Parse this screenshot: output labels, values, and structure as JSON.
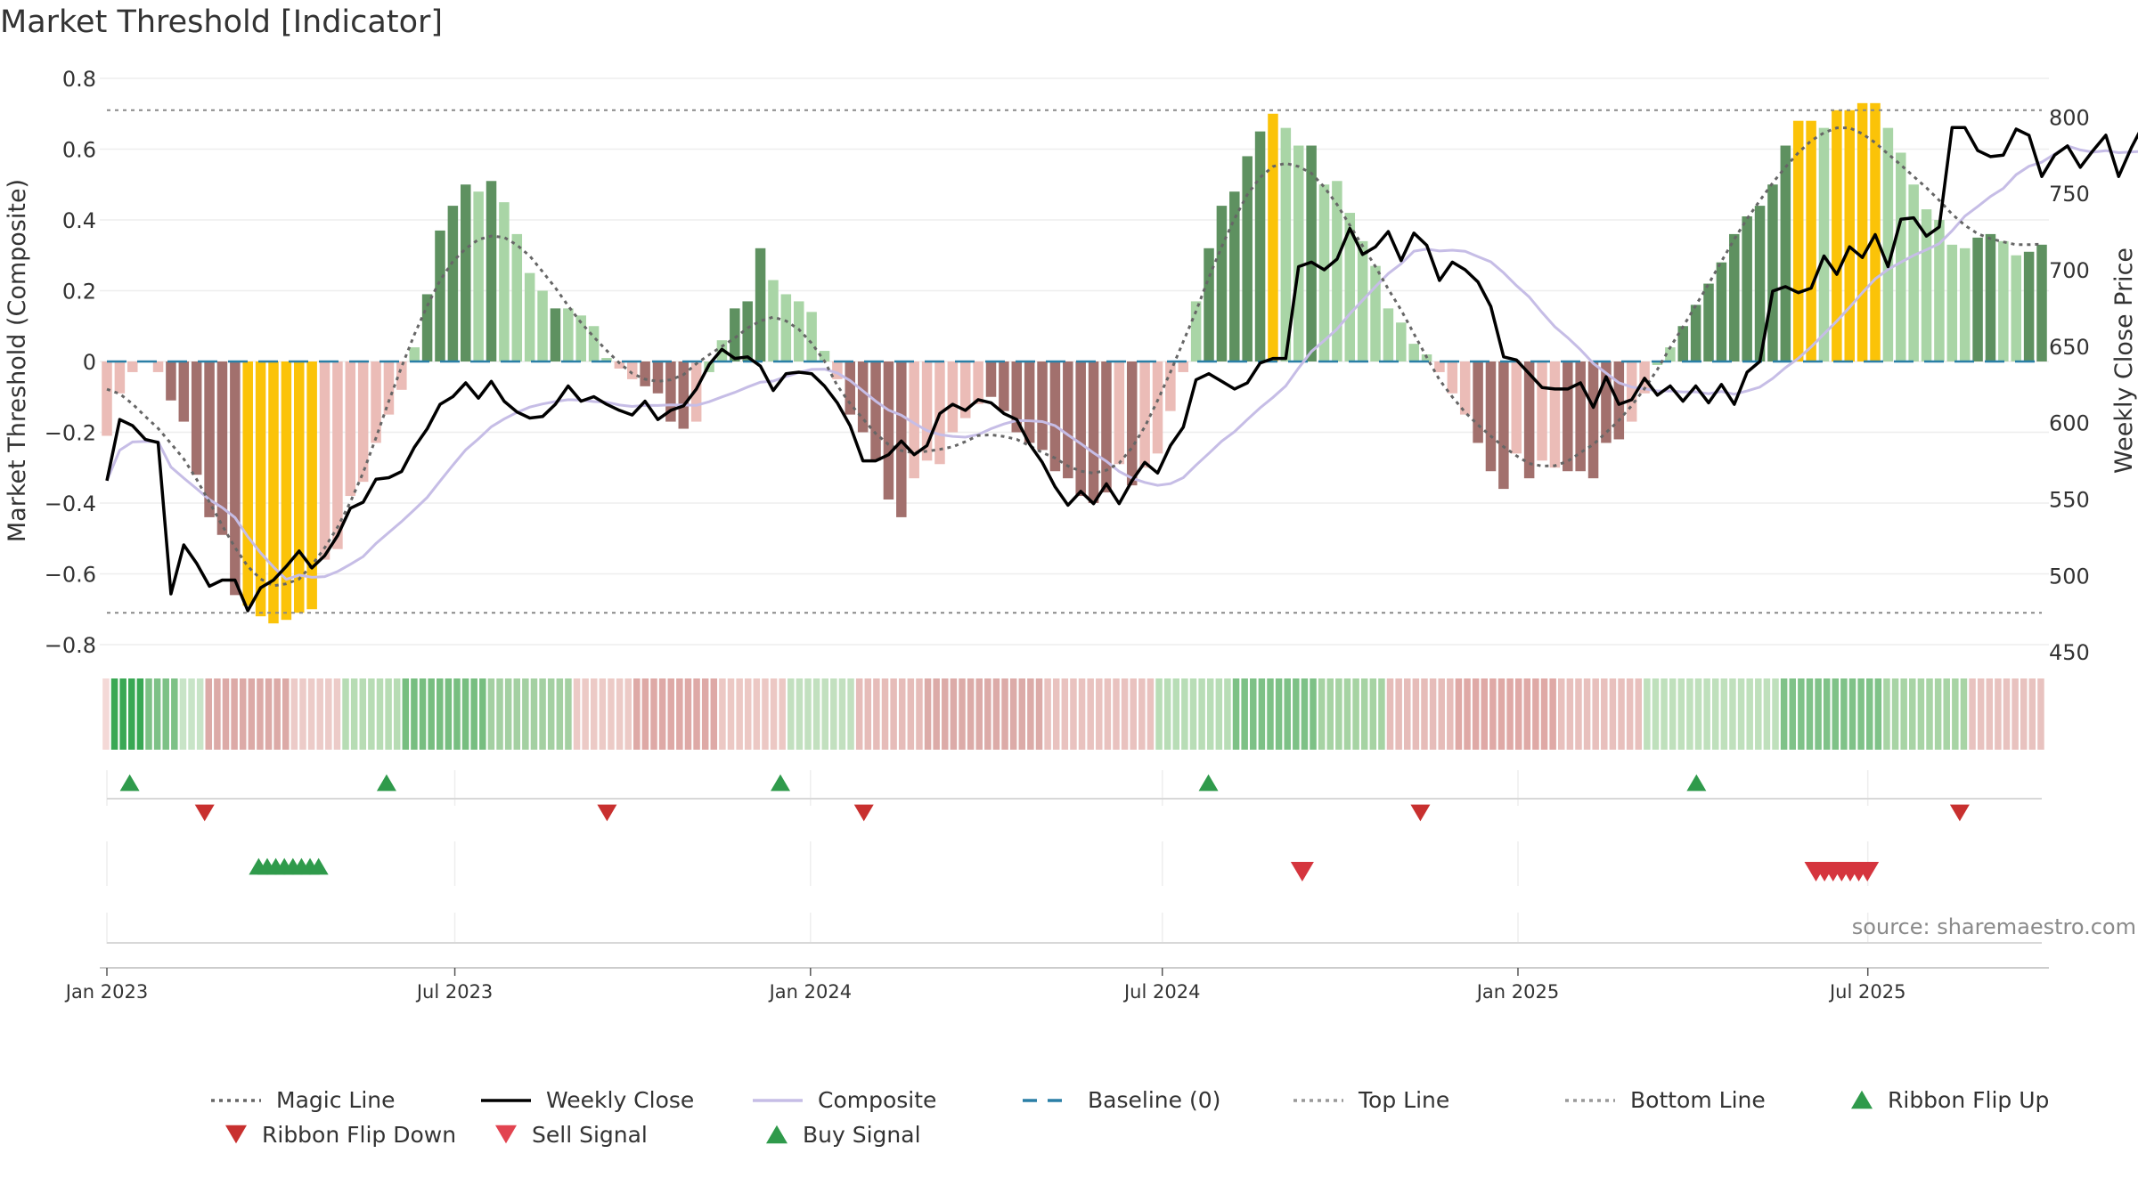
{
  "chart_data": {
    "type": "bar",
    "title": "Market Threshold [Indicator]",
    "ylabel": "Market Threshold (Composite)",
    "y2label": "Weekly Close Price",
    "ylim": [
      -0.8,
      0.8
    ],
    "y2lim": [
      450,
      800
    ],
    "yticks": [
      "0.8",
      "0.6",
      "0.4",
      "0.2",
      "0",
      "−0.2",
      "−0.4",
      "−0.6",
      "−0.8"
    ],
    "y2ticks": [
      "800",
      "750",
      "700",
      "650",
      "600",
      "550",
      "500",
      "450"
    ],
    "xticks": [
      "Jan 2023",
      "Jul 2023",
      "Jan 2024",
      "Jul 2024",
      "Jan 2025",
      "Jul 2025"
    ],
    "x_start": "2023-01-02",
    "x_end": "2025-09-29",
    "top_line": 0.71,
    "bottom_line": -0.71,
    "baseline": 0,
    "grid": true,
    "legend_position": "bottom",
    "source": "source: sharemaestro.com",
    "colors": {
      "pos_dark": "#5e9160",
      "pos_light": "#a9d5a6",
      "neg_dark": "#a2706d",
      "neg_light": "#ebbcb7",
      "extreme": "#fbc308",
      "weekly_close": "#000000",
      "composite": "#c6bde6",
      "magic": "#666666",
      "baseline": "#2a7fa6",
      "buy": "#2f9a4b",
      "sell": "#d5353e"
    },
    "histogram": [
      [
        -0.21,
        "nl"
      ],
      [
        -0.09,
        "nl"
      ],
      [
        -0.03,
        "nl"
      ],
      [
        0,
        "nl"
      ],
      [
        -0.03,
        "nl"
      ],
      [
        -0.11,
        "nd"
      ],
      [
        -0.17,
        "nd"
      ],
      [
        -0.32,
        "nd"
      ],
      [
        -0.44,
        "nd"
      ],
      [
        -0.49,
        "nd"
      ],
      [
        -0.66,
        "nd"
      ],
      [
        -0.69,
        "x"
      ],
      [
        -0.72,
        "x"
      ],
      [
        -0.74,
        "x"
      ],
      [
        -0.73,
        "x"
      ],
      [
        -0.71,
        "x"
      ],
      [
        -0.7,
        "x"
      ],
      [
        -0.56,
        "nl"
      ],
      [
        -0.53,
        "nl"
      ],
      [
        -0.38,
        "nl"
      ],
      [
        -0.34,
        "nl"
      ],
      [
        -0.23,
        "nl"
      ],
      [
        -0.15,
        "nl"
      ],
      [
        -0.08,
        "nl"
      ],
      [
        0.04,
        "pl"
      ],
      [
        0.19,
        "pd"
      ],
      [
        0.37,
        "pd"
      ],
      [
        0.44,
        "pd"
      ],
      [
        0.5,
        "pd"
      ],
      [
        0.48,
        "pl"
      ],
      [
        0.51,
        "pd"
      ],
      [
        0.45,
        "pl"
      ],
      [
        0.36,
        "pl"
      ],
      [
        0.25,
        "pl"
      ],
      [
        0.2,
        "pl"
      ],
      [
        0.15,
        "pd"
      ],
      [
        0.15,
        "pl"
      ],
      [
        0.13,
        "pl"
      ],
      [
        0.1,
        "pl"
      ],
      [
        0.01,
        "pl"
      ],
      [
        -0.02,
        "nl"
      ],
      [
        -0.05,
        "nl"
      ],
      [
        -0.07,
        "nd"
      ],
      [
        -0.09,
        "nd"
      ],
      [
        -0.17,
        "nd"
      ],
      [
        -0.19,
        "nd"
      ],
      [
        -0.17,
        "nl"
      ],
      [
        -0.03,
        "pl"
      ],
      [
        0.06,
        "pl"
      ],
      [
        0.15,
        "pd"
      ],
      [
        0.17,
        "pd"
      ],
      [
        0.32,
        "pd"
      ],
      [
        0.23,
        "pl"
      ],
      [
        0.19,
        "pl"
      ],
      [
        0.17,
        "pl"
      ],
      [
        0.14,
        "pl"
      ],
      [
        0.03,
        "pl"
      ],
      [
        -0.05,
        "nl"
      ],
      [
        -0.15,
        "nd"
      ],
      [
        -0.2,
        "nd"
      ],
      [
        -0.28,
        "nd"
      ],
      [
        -0.39,
        "nd"
      ],
      [
        -0.44,
        "nd"
      ],
      [
        -0.33,
        "nl"
      ],
      [
        -0.28,
        "nl"
      ],
      [
        -0.29,
        "nl"
      ],
      [
        -0.2,
        "nl"
      ],
      [
        -0.16,
        "nl"
      ],
      [
        -0.12,
        "nl"
      ],
      [
        -0.1,
        "nd"
      ],
      [
        -0.14,
        "nd"
      ],
      [
        -0.2,
        "nd"
      ],
      [
        -0.23,
        "nd"
      ],
      [
        -0.25,
        "nd"
      ],
      [
        -0.31,
        "nd"
      ],
      [
        -0.33,
        "nd"
      ],
      [
        -0.38,
        "nd"
      ],
      [
        -0.4,
        "nd"
      ],
      [
        -0.37,
        "nd"
      ],
      [
        -0.29,
        "nl"
      ],
      [
        -0.35,
        "nd"
      ],
      [
        -0.3,
        "nl"
      ],
      [
        -0.26,
        "nl"
      ],
      [
        -0.14,
        "nl"
      ],
      [
        -0.03,
        "nl"
      ],
      [
        0.17,
        "pl"
      ],
      [
        0.32,
        "pd"
      ],
      [
        0.44,
        "pd"
      ],
      [
        0.48,
        "pd"
      ],
      [
        0.58,
        "pd"
      ],
      [
        0.65,
        "pd"
      ],
      [
        0.7,
        "x"
      ],
      [
        0.66,
        "pl"
      ],
      [
        0.61,
        "pl"
      ],
      [
        0.61,
        "pd"
      ],
      [
        0.5,
        "pl"
      ],
      [
        0.51,
        "pl"
      ],
      [
        0.42,
        "pl"
      ],
      [
        0.34,
        "pl"
      ],
      [
        0.27,
        "pl"
      ],
      [
        0.15,
        "pl"
      ],
      [
        0.11,
        "pl"
      ],
      [
        0.05,
        "pl"
      ],
      [
        0.02,
        "pl"
      ],
      [
        -0.03,
        "nl"
      ],
      [
        -0.09,
        "nl"
      ],
      [
        -0.15,
        "nl"
      ],
      [
        -0.23,
        "nd"
      ],
      [
        -0.31,
        "nd"
      ],
      [
        -0.36,
        "nd"
      ],
      [
        -0.26,
        "nl"
      ],
      [
        -0.33,
        "nd"
      ],
      [
        -0.28,
        "nl"
      ],
      [
        -0.3,
        "nl"
      ],
      [
        -0.31,
        "nd"
      ],
      [
        -0.31,
        "nd"
      ],
      [
        -0.33,
        "nd"
      ],
      [
        -0.23,
        "nd"
      ],
      [
        -0.22,
        "nd"
      ],
      [
        -0.17,
        "nl"
      ],
      [
        -0.09,
        "nl"
      ],
      [
        -0.01,
        "pl"
      ],
      [
        0.04,
        "pl"
      ],
      [
        0.1,
        "pd"
      ],
      [
        0.16,
        "pd"
      ],
      [
        0.22,
        "pd"
      ],
      [
        0.28,
        "pd"
      ],
      [
        0.36,
        "pd"
      ],
      [
        0.41,
        "pd"
      ],
      [
        0.44,
        "pd"
      ],
      [
        0.5,
        "pd"
      ],
      [
        0.61,
        "pd"
      ],
      [
        0.68,
        "x"
      ],
      [
        0.68,
        "x"
      ],
      [
        0.66,
        "pl"
      ],
      [
        0.71,
        "x"
      ],
      [
        0.71,
        "x"
      ],
      [
        0.73,
        "x"
      ],
      [
        0.73,
        "x"
      ],
      [
        0.66,
        "pl"
      ],
      [
        0.59,
        "pl"
      ],
      [
        0.5,
        "pl"
      ],
      [
        0.43,
        "pl"
      ],
      [
        0.4,
        "pl"
      ],
      [
        0.33,
        "pl"
      ],
      [
        0.32,
        "pl"
      ],
      [
        0.35,
        "pd"
      ],
      [
        0.36,
        "pd"
      ],
      [
        0.34,
        "pl"
      ],
      [
        0.3,
        "pl"
      ],
      [
        0.31,
        "pd"
      ],
      [
        0.33,
        "pd"
      ]
    ],
    "weekly_close": [
      562,
      602,
      598,
      589,
      587,
      488,
      520,
      508,
      493,
      497,
      497,
      477,
      492,
      497,
      506,
      516,
      505,
      513,
      526,
      544,
      548,
      563,
      564,
      568,
      584,
      596,
      612,
      617,
      626,
      616,
      627,
      614,
      607,
      603,
      604,
      612,
      624,
      614,
      617,
      612,
      608,
      605,
      614,
      602,
      608,
      611,
      622,
      638,
      648,
      642,
      643,
      637,
      621,
      632,
      633,
      632,
      624,
      613,
      598,
      575,
      575,
      579,
      588,
      579,
      585,
      606,
      612,
      608,
      615,
      613,
      606,
      602,
      586,
      574,
      558,
      546,
      555,
      547,
      560,
      547,
      562,
      574,
      567,
      585,
      597,
      628,
      632,
      627,
      622,
      626,
      639,
      642,
      642,
      702,
      705,
      700,
      707,
      727,
      710,
      715,
      725,
      706,
      724,
      716,
      693,
      705,
      700,
      692,
      676,
      643,
      641,
      632,
      623,
      622,
      622,
      626,
      610,
      630,
      612,
      615,
      629,
      618,
      624,
      614,
      624,
      613,
      625,
      612,
      633,
      640,
      686,
      689,
      685,
      688,
      709,
      697,
      715,
      708,
      723,
      702,
      733,
      734,
      722,
      728,
      793,
      793,
      778,
      774,
      775,
      792,
      788,
      761,
      775,
      781,
      767,
      778,
      788,
      761,
      780,
      796,
      788
    ]
  },
  "ribbon": {
    "segments": [
      [
        0,
        1,
        "#f4d9d7"
      ],
      [
        1,
        5,
        "#39a854"
      ],
      [
        5,
        9,
        "#7dc186"
      ],
      [
        9,
        12,
        "#c8e4c7"
      ],
      [
        12,
        22,
        "#dcaaa7"
      ],
      [
        22,
        28,
        "#eccbc8"
      ],
      [
        28,
        35,
        "#b7dcb4"
      ],
      [
        35,
        45,
        "#77be80"
      ],
      [
        45,
        55,
        "#a4d0a2"
      ],
      [
        55,
        62,
        "#eccac6"
      ],
      [
        62,
        72,
        "#dea9a6"
      ],
      [
        72,
        80,
        "#ecc8c4"
      ],
      [
        80,
        88,
        "#c2e0bf"
      ],
      [
        88,
        96,
        "#e6bcb9"
      ],
      [
        96,
        110,
        "#dcaba8"
      ],
      [
        110,
        123,
        "#e9c2bf"
      ],
      [
        123,
        132,
        "#b8ddb6"
      ],
      [
        132,
        142,
        "#7dc186"
      ],
      [
        142,
        150,
        "#a6d3a3"
      ],
      [
        150,
        158,
        "#e6bcb9"
      ],
      [
        158,
        170,
        "#dfa9a6"
      ],
      [
        170,
        180,
        "#e8c0bd"
      ],
      [
        180,
        196,
        "#bfe0bc"
      ],
      [
        196,
        208,
        "#7fc288"
      ],
      [
        208,
        218,
        "#a8d4a5"
      ],
      [
        218,
        227,
        "#e8c2bf"
      ]
    ]
  },
  "signals": {
    "ribbon_flip_up": [
      1,
      31,
      77,
      127,
      184
    ],
    "ribbon_flip_down": [
      11,
      58,
      88,
      153,
      216
    ],
    "buy_signal": [
      17,
      18,
      19,
      20,
      21,
      22,
      23,
      24
    ],
    "sell_signal": [
      139,
      199,
      200,
      201,
      202,
      203,
      204,
      205
    ]
  },
  "legend": [
    {
      "label": "Magic Line",
      "type": "dotted",
      "color": "#666666"
    },
    {
      "label": "Weekly Close",
      "type": "line",
      "color": "#000000"
    },
    {
      "label": "Composite",
      "type": "line",
      "color": "#c6bde6"
    },
    {
      "label": "Baseline (0)",
      "type": "dashed",
      "color": "#2a7fa6"
    },
    {
      "label": "Top Line",
      "type": "dotted",
      "color": "#999999"
    },
    {
      "label": "Bottom Line",
      "type": "dotted",
      "color": "#999999"
    },
    {
      "label": "Ribbon Flip Up",
      "type": "tri-up",
      "color": "#2f9a4b"
    },
    {
      "label": "Ribbon Flip Down",
      "type": "tri-down",
      "color": "#c8302f"
    },
    {
      "label": "Sell Signal",
      "type": "tri-down",
      "color": "#e24450"
    },
    {
      "label": "Buy Signal",
      "type": "tri-up",
      "color": "#2f9a4b"
    }
  ]
}
